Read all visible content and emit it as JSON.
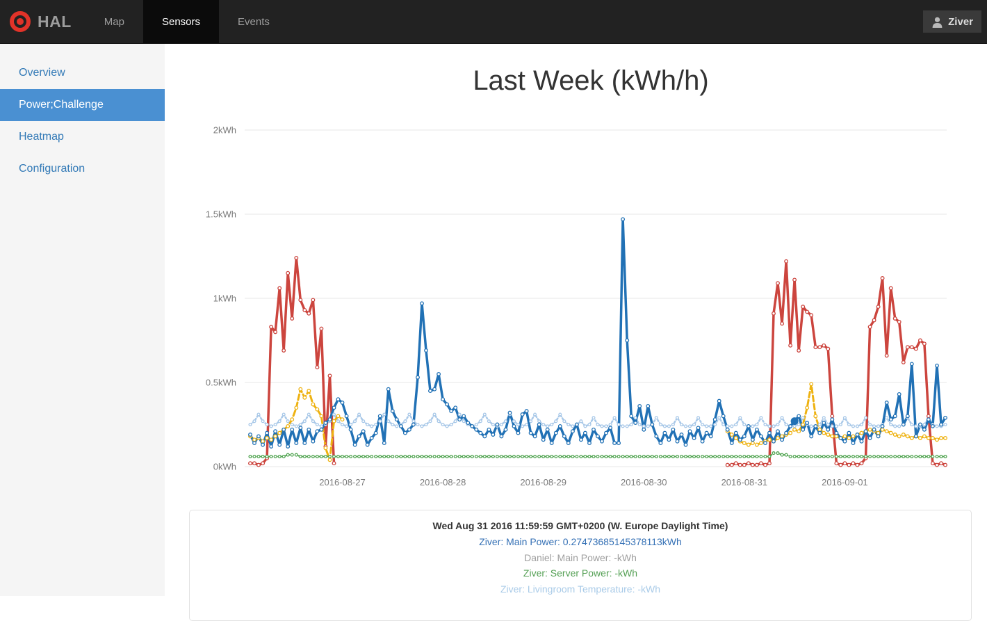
{
  "navbar": {
    "brand": "HAL",
    "items": [
      {
        "label": "Map",
        "active": false
      },
      {
        "label": "Sensors",
        "active": true
      },
      {
        "label": "Events",
        "active": false
      }
    ],
    "user": "Ziver"
  },
  "sidebar": {
    "items": [
      {
        "label": "Overview",
        "active": false
      },
      {
        "label": "Power;Challenge",
        "active": true
      },
      {
        "label": "Heatmap",
        "active": false
      },
      {
        "label": "Configuration",
        "active": false
      }
    ]
  },
  "chart": {
    "title": "Last Week (kWh/h)"
  },
  "tooltip": {
    "timestamp": "Wed Aug 31 2016 11:59:59 GMT+0200 (W. Europe Daylight Time)",
    "entries": [
      {
        "text": "Ziver: Main Power: 0.27473685145378113kWh",
        "color": "#3470b5"
      },
      {
        "text": "Daniel: Main Power: -kWh",
        "color": "#9e9e9e"
      },
      {
        "text": "Ziver: Server Power: -kWh",
        "color": "#55a055"
      },
      {
        "text": "Ziver: Livingroom Temperature: -kWh",
        "color": "#a9cbe8"
      }
    ]
  },
  "chart_data": {
    "type": "line",
    "title": "Last Week (kWh/h)",
    "x_unit": "hours, t=0 at 2016-08-26 02:00",
    "x_range": [
      0,
      166
    ],
    "y_range": [
      0,
      2
    ],
    "grid": true,
    "y_ticks": [
      {
        "v": 0,
        "label": "0kWh"
      },
      {
        "v": 0.5,
        "label": "0.5kWh"
      },
      {
        "v": 1,
        "label": "1kWh"
      },
      {
        "v": 1.5,
        "label": "1.5kWh"
      },
      {
        "v": 2,
        "label": "2kWh"
      }
    ],
    "x_ticks": [
      {
        "t": 22,
        "label": "2016-08-27"
      },
      {
        "t": 46,
        "label": "2016-08-28"
      },
      {
        "t": 70,
        "label": "2016-08-29"
      },
      {
        "t": 94,
        "label": "2016-08-30"
      },
      {
        "t": 118,
        "label": "2016-08-31"
      },
      {
        "t": 142,
        "label": "2016-09-01"
      }
    ],
    "highlight": {
      "series": "Ziver: Main Power",
      "t": 130,
      "value": 0.27,
      "color": "#2171b5"
    },
    "series": [
      {
        "name": "Ziver: Livingroom Temperature",
        "color": "#a8c8e8",
        "style": "dotted",
        "width": 2.5,
        "marker": "ring",
        "segments": [
          {
            "start": 0,
            "values": [
              0.25,
              0.27,
              0.31,
              0.27,
              0.25,
              0.24,
              0.25,
              0.27,
              0.31,
              0.27,
              0.25,
              0.24,
              0.25,
              0.27,
              0.31,
              0.27,
              0.25,
              0.24,
              0.25,
              0.27,
              0.31,
              0.27,
              0.25,
              0.24,
              0.25,
              0.27,
              0.31,
              0.27,
              0.25,
              0.24,
              0.25,
              0.27,
              0.31,
              0.27,
              0.25,
              0.24,
              0.25,
              0.27,
              0.31,
              0.27,
              0.25,
              0.24,
              0.25,
              0.27,
              0.31,
              0.27,
              0.25,
              0.24,
              0.25,
              0.27,
              0.31,
              0.27,
              0.25,
              0.24,
              0.25,
              0.27,
              0.31,
              0.27,
              0.25,
              0.24,
              0.25,
              0.27,
              0.31,
              0.27,
              0.25,
              0.24,
              0.25,
              0.27,
              0.31,
              0.27,
              0.25,
              0.24,
              0.25,
              0.27,
              0.31,
              0.27,
              0.25,
              0.24,
              0.25,
              0.27,
              0.24,
              0.25,
              0.29,
              0.25,
              0.24,
              0.24,
              0.25,
              0.29,
              0.25,
              0.24,
              0.24,
              0.25,
              0.29,
              0.25,
              0.24,
              0.24,
              0.25,
              0.29,
              0.25,
              0.24,
              0.24,
              0.25,
              0.29,
              0.25,
              0.24,
              0.24,
              0.25,
              0.29,
              0.25,
              0.24,
              0.24,
              0.25,
              0.29,
              0.25,
              0.24,
              0.24,
              0.25,
              0.29,
              0.25,
              0.24,
              0.24,
              0.25,
              0.29,
              0.25,
              0.24,
              0.24,
              0.25,
              0.29,
              0.25,
              0.24,
              0.24,
              0.25,
              0.29,
              0.25,
              0.24,
              0.24,
              0.25,
              0.29,
              0.25,
              0.24,
              0.24,
              0.25,
              0.29,
              0.25,
              0.24,
              0.24,
              0.25,
              0.29,
              0.25,
              0.24,
              0.24,
              0.25,
              0.29,
              0.25,
              0.24,
              0.24,
              0.25,
              0.29,
              0.25,
              0.24,
              0.24,
              0.25,
              0.29,
              0.25,
              0.24,
              0.24,
              0.25
            ]
          }
        ]
      },
      {
        "name": "unlabeled-red",
        "color": "#cc453e",
        "style": "solid",
        "width": 3.5,
        "marker": "ring",
        "segments": [
          {
            "start": 0,
            "values": [
              0.02,
              0.02,
              0.01,
              0.02,
              0.05,
              0.83,
              0.8,
              1.06,
              0.69,
              1.15,
              0.88,
              1.24,
              0.99,
              0.93,
              0.91,
              0.99,
              0.59,
              0.82,
              0.12,
              0.54,
              0.02
            ]
          },
          {
            "start": 114,
            "values": [
              0.01,
              0.01,
              0.02,
              0.01,
              0.01,
              0.02,
              0.01,
              0.01,
              0.02,
              0.01,
              0.02,
              0.91,
              1.09,
              0.85,
              1.22,
              0.72,
              1.11,
              0.69,
              0.95,
              0.92,
              0.9,
              0.71,
              0.71,
              0.72,
              0.7,
              0.3,
              0.02,
              0.01,
              0.02,
              0.01,
              0.02,
              0.01,
              0.02,
              0.05,
              0.83,
              0.87,
              0.95,
              1.12,
              0.66,
              1.06,
              0.88,
              0.86,
              0.62,
              0.71,
              0.71,
              0.7,
              0.75,
              0.73,
              0.3,
              0.02,
              0.01,
              0.02,
              0.01
            ]
          }
        ]
      },
      {
        "name": "unlabeled-yellow",
        "color": "#eeb211",
        "style": "dashed",
        "width": 3,
        "marker": "ring",
        "segments": [
          {
            "start": 0,
            "values": [
              0.18,
              0.16,
              0.17,
              0.15,
              0.17,
              0.16,
              0.18,
              0.2,
              0.22,
              0.24,
              0.28,
              0.35,
              0.46,
              0.41,
              0.45,
              0.37,
              0.34,
              0.3,
              0.11,
              0.04,
              0.27,
              0.3,
              0.28
            ]
          },
          {
            "start": 114,
            "values": [
              0.21,
              0.19,
              0.17,
              0.15,
              0.14,
              0.13,
              0.14,
              0.13,
              0.14,
              0.15,
              0.16,
              0.15,
              0.17,
              0.18,
              0.19,
              0.2,
              0.22,
              0.21,
              0.25,
              0.35,
              0.49,
              0.3,
              0.22,
              0.2,
              0.19,
              0.18,
              0.18,
              0.17,
              0.18,
              0.17,
              0.18,
              0.19,
              0.2,
              0.21,
              0.22,
              0.21,
              0.2,
              0.22,
              0.21,
              0.2,
              0.19,
              0.18,
              0.19,
              0.18,
              0.17,
              0.18,
              0.17,
              0.18,
              0.17,
              0.17,
              0.16,
              0.17,
              0.17
            ]
          }
        ]
      },
      {
        "name": "Ziver: Server Power",
        "color": "#52a552",
        "style": "dotted",
        "width": 2,
        "marker": "ring",
        "segments": [
          {
            "start": 0,
            "values": [
              0.06,
              0.06,
              0.06,
              0.06,
              0.06,
              0.06,
              0.06,
              0.06,
              0.06,
              0.07,
              0.07,
              0.07,
              0.06,
              0.06,
              0.06,
              0.06,
              0.06,
              0.06,
              0.06,
              0.06,
              0.06,
              0.06,
              0.06,
              0.06,
              0.06,
              0.06,
              0.06,
              0.06,
              0.06,
              0.06,
              0.06,
              0.06,
              0.06,
              0.06,
              0.06,
              0.06,
              0.06,
              0.06,
              0.06,
              0.06,
              0.06,
              0.06,
              0.06,
              0.06,
              0.06,
              0.06,
              0.06,
              0.06,
              0.06,
              0.06,
              0.06,
              0.06,
              0.06,
              0.06,
              0.06,
              0.06,
              0.06,
              0.06,
              0.06,
              0.06,
              0.06,
              0.06,
              0.06,
              0.06,
              0.06,
              0.06,
              0.06,
              0.06,
              0.06,
              0.06,
              0.06,
              0.06,
              0.06,
              0.06,
              0.06,
              0.06,
              0.06,
              0.06,
              0.06,
              0.06,
              0.06,
              0.06,
              0.06,
              0.06,
              0.06,
              0.06,
              0.06,
              0.06,
              0.06,
              0.06,
              0.06,
              0.06,
              0.06,
              0.06,
              0.06,
              0.06,
              0.06,
              0.06,
              0.06,
              0.06,
              0.06,
              0.06,
              0.06,
              0.06,
              0.06,
              0.06,
              0.06,
              0.06,
              0.06,
              0.06,
              0.06,
              0.06,
              0.06,
              0.06,
              0.06,
              0.06,
              0.06,
              0.06,
              0.06,
              0.06,
              0.06,
              0.06,
              0.06,
              0.06,
              0.06,
              0.08,
              0.08,
              0.07,
              0.07,
              0.06,
              0.06,
              0.06,
              0.06,
              0.06,
              0.06,
              0.06,
              0.06,
              0.06,
              0.06,
              0.06,
              0.06,
              0.06,
              0.06,
              0.06,
              0.06,
              0.06,
              0.06,
              0.06,
              0.06,
              0.06,
              0.06,
              0.06,
              0.06,
              0.06,
              0.06,
              0.06,
              0.06,
              0.06,
              0.06,
              0.06,
              0.06,
              0.06,
              0.06,
              0.06,
              0.06,
              0.06,
              0.06
            ]
          }
        ]
      },
      {
        "name": "Ziver: Main Power",
        "color": "#2171b5",
        "style": "solid",
        "width": 3.5,
        "marker": "ring",
        "segments": [
          {
            "start": 0,
            "values": [
              0.19,
              0.14,
              0.18,
              0.13,
              0.2,
              0.12,
              0.21,
              0.13,
              0.22,
              0.12,
              0.22,
              0.14,
              0.23,
              0.14,
              0.22,
              0.15,
              0.21,
              0.22,
              0.26,
              0.28,
              0.35,
              0.4,
              0.38,
              0.3,
              0.22,
              0.13,
              0.18,
              0.21,
              0.13,
              0.17,
              0.2,
              0.3,
              0.14,
              0.46,
              0.33,
              0.28,
              0.24,
              0.2,
              0.22,
              0.25,
              0.53,
              0.97,
              0.69,
              0.45,
              0.46,
              0.55,
              0.4,
              0.37,
              0.33,
              0.35,
              0.28,
              0.3,
              0.26,
              0.24,
              0.22,
              0.2,
              0.18,
              0.22,
              0.19,
              0.25,
              0.18,
              0.22,
              0.32,
              0.24,
              0.2,
              0.31,
              0.33,
              0.2,
              0.18,
              0.25,
              0.16,
              0.22,
              0.14,
              0.2,
              0.24,
              0.18,
              0.14,
              0.21,
              0.25,
              0.16,
              0.2,
              0.14,
              0.22,
              0.18,
              0.15,
              0.2,
              0.23,
              0.14,
              0.14,
              1.47,
              0.75,
              0.3,
              0.26,
              0.36,
              0.22,
              0.36,
              0.25,
              0.18,
              0.14,
              0.2,
              0.16,
              0.22,
              0.15,
              0.19,
              0.13,
              0.21,
              0.17,
              0.23,
              0.15,
              0.2,
              0.18,
              0.28,
              0.39,
              0.3,
              0.22,
              0.14,
              0.2,
              0.16,
              0.18,
              0.24,
              0.16,
              0.22,
              0.18,
              0.14,
              0.2,
              0.15,
              0.21,
              0.16,
              0.2,
              0.24,
              0.27,
              0.3,
              0.22,
              0.26,
              0.18,
              0.24,
              0.2,
              0.26,
              0.22,
              0.28,
              0.2,
              0.17,
              0.15,
              0.2,
              0.14,
              0.19,
              0.15,
              0.21,
              0.17,
              0.22,
              0.18,
              0.24,
              0.38,
              0.28,
              0.3,
              0.43,
              0.25,
              0.3,
              0.61,
              0.18,
              0.25,
              0.22,
              0.28,
              0.24,
              0.6,
              0.25,
              0.29
            ]
          }
        ]
      }
    ]
  }
}
